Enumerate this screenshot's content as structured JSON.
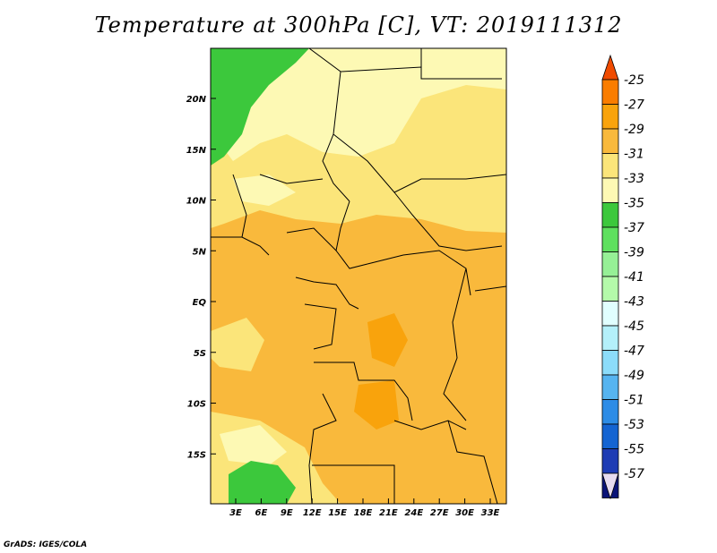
{
  "title": "Temperature at 300hPa [C], VT: 2019111312",
  "credit": "GrADS: IGES/COLA",
  "lat_labels": [
    "20N",
    "15N",
    "10N",
    "5N",
    "EQ",
    "5S",
    "10S",
    "15S"
  ],
  "lon_labels": [
    "3E",
    "6E",
    "9E",
    "12E",
    "15E",
    "18E",
    "21E",
    "24E",
    "27E",
    "30E",
    "33E"
  ],
  "colorbar": {
    "levels": [
      "-25",
      "-27",
      "-29",
      "-31",
      "-33",
      "-35",
      "-37",
      "-39",
      "-41",
      "-43",
      "-45",
      "-47",
      "-49",
      "-51",
      "-53",
      "-55",
      "-57"
    ],
    "colors": [
      "#f04b00",
      "#fa7d00",
      "#f9a30c",
      "#f9b93c",
      "#fbe57a",
      "#fdf9b4",
      "#3cc83c",
      "#5ee05e",
      "#96f096",
      "#b4faaa",
      "#e1ffff",
      "#b4f0fa",
      "#8cdcfa",
      "#56b4f0",
      "#2d8ce6",
      "#1464d2",
      "#1e3cb4",
      "#0a1478",
      "#e6dcf0"
    ]
  },
  "map_colors": {
    "warm": "#f9b93c",
    "mid": "#fbe57a",
    "cool": "#fdf9b4",
    "warmest": "#f9a30c",
    "green": "#3cc83c"
  }
}
